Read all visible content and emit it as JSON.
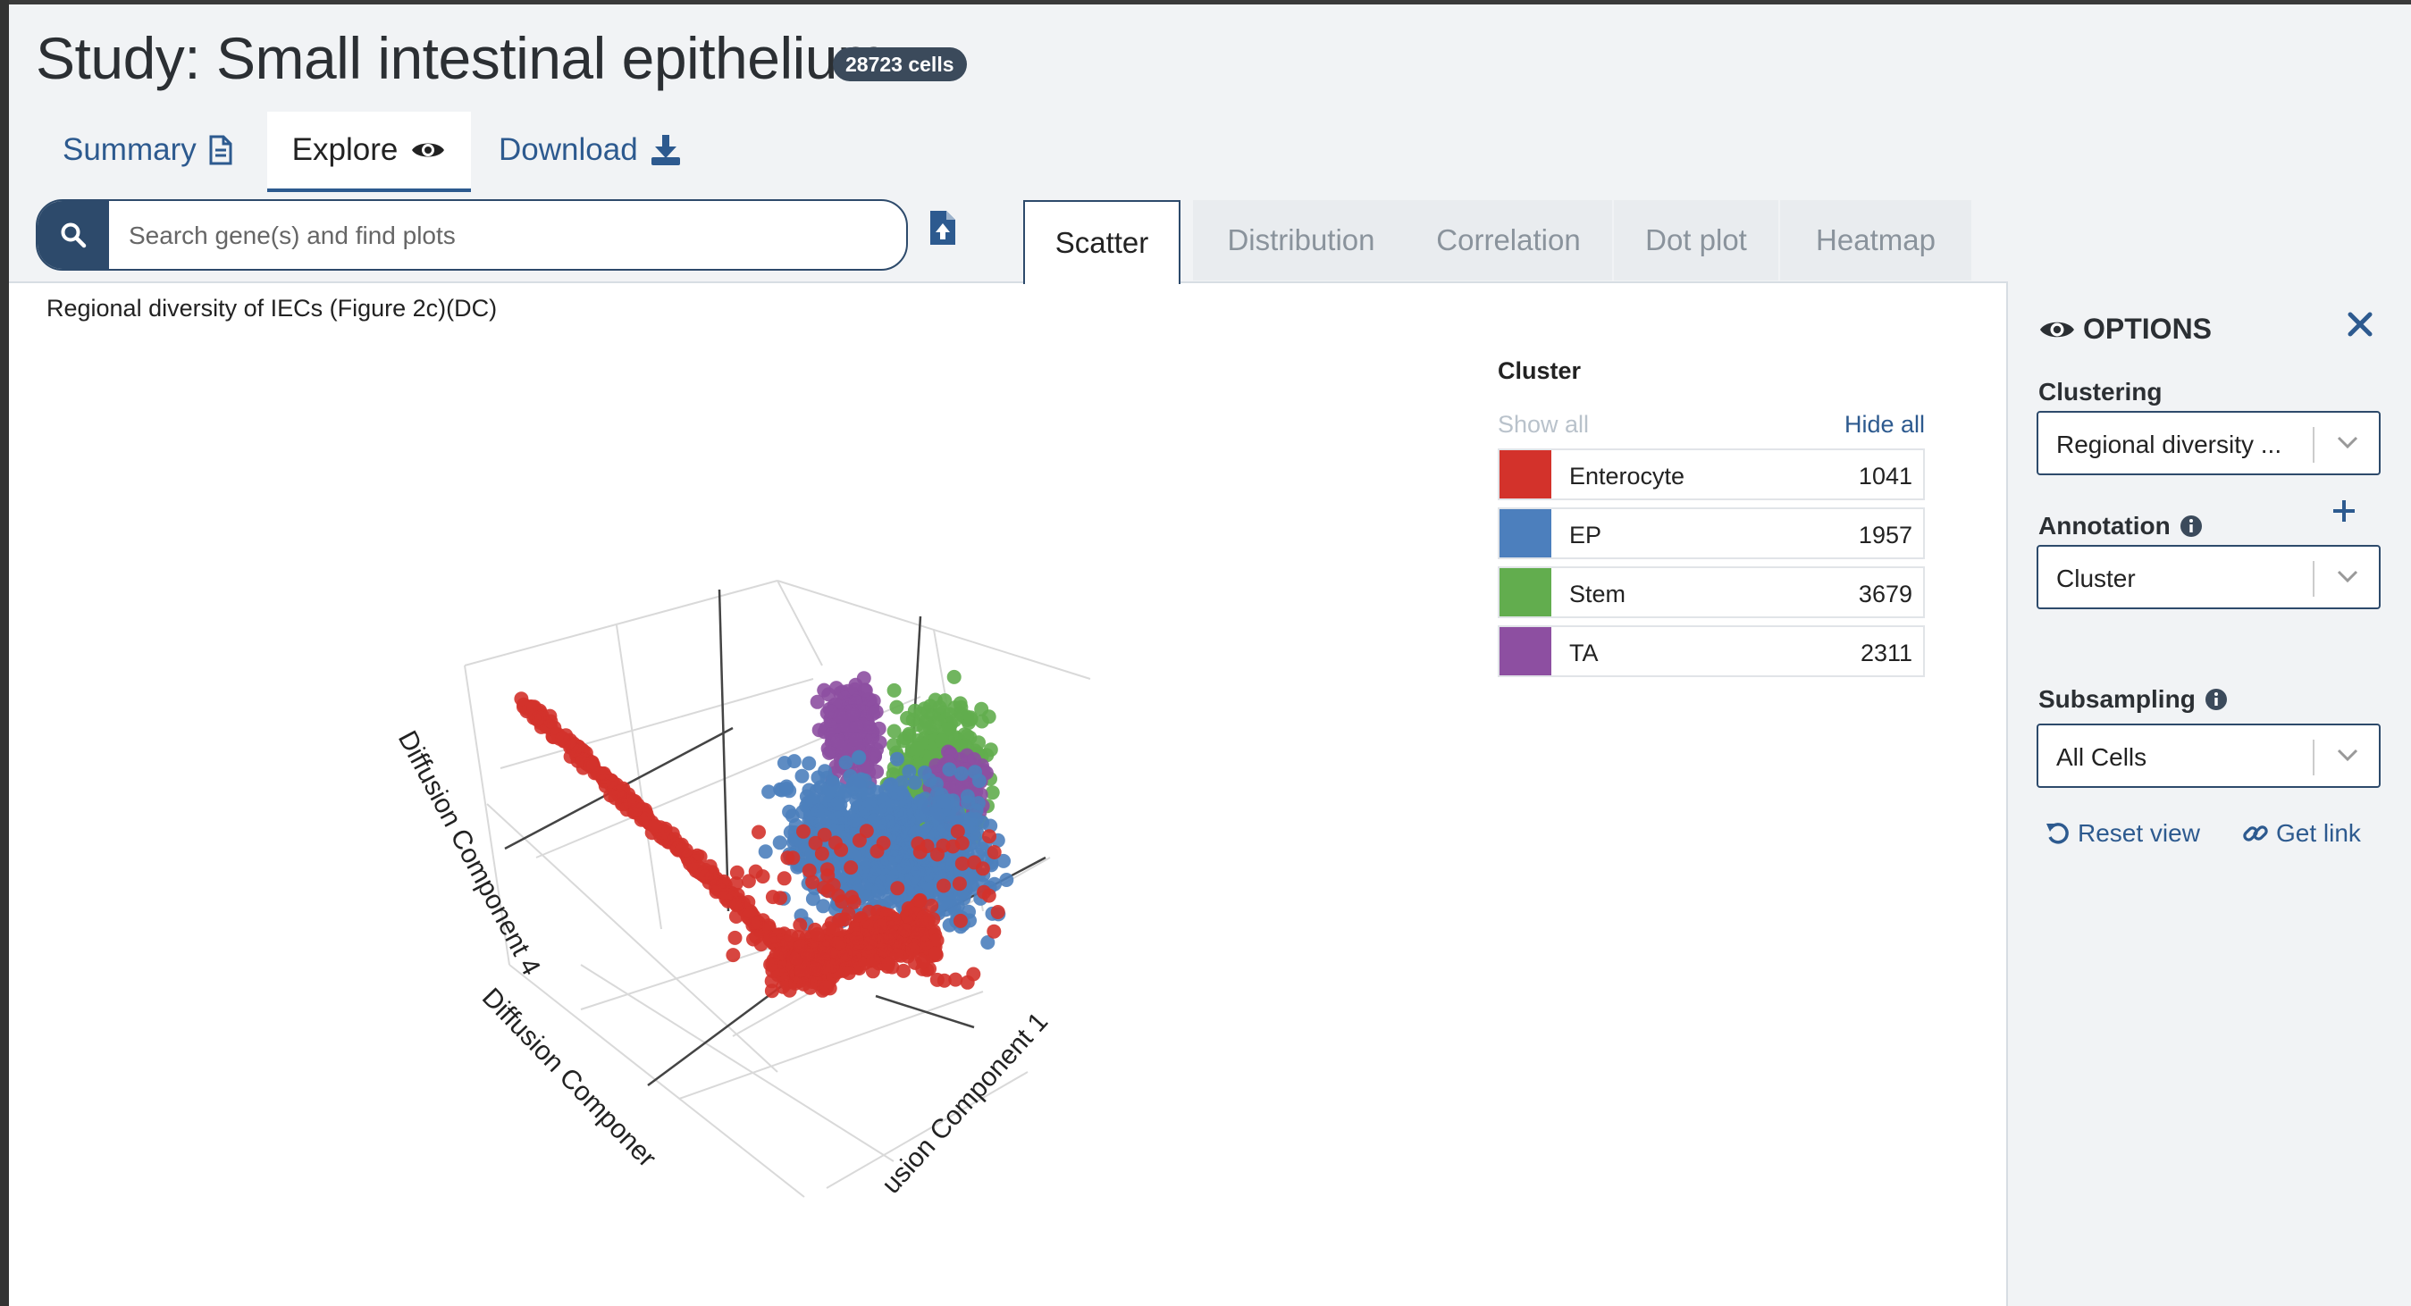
{
  "study": {
    "title": "Study: Small intestinal epithelium",
    "cell_badge": "28723 cells"
  },
  "nav": {
    "summary": "Summary",
    "explore": "Explore",
    "download": "Download"
  },
  "search": {
    "placeholder": "Search gene(s) and find plots",
    "value": ""
  },
  "plot_tabs": [
    "Scatter",
    "Distribution",
    "Correlation",
    "Dot plot",
    "Heatmap"
  ],
  "active_plot_tab": "Scatter",
  "plot": {
    "title": "Regional diversity of IECs (Figure 2c)(DC)",
    "axis_labels": [
      "Diffusion Component 4",
      "Diffusion Componer",
      "usion Component 1"
    ]
  },
  "legend": {
    "title": "Cluster",
    "show_all": "Show all",
    "hide_all": "Hide all",
    "items": [
      {
        "label": "Enterocyte",
        "count": "1041",
        "color": "#d3322b"
      },
      {
        "label": "EP",
        "count": "1957",
        "color": "#4c7fbd"
      },
      {
        "label": "Stem",
        "count": "3679",
        "color": "#62ad4e"
      },
      {
        "label": "TA",
        "count": "2311",
        "color": "#8d4fa1"
      }
    ]
  },
  "options": {
    "title": "OPTIONS",
    "clustering_label": "Clustering",
    "clustering_value": "Regional diversity ...",
    "annotation_label": "Annotation",
    "annotation_value": "Cluster",
    "subsampling_label": "Subsampling",
    "subsampling_value": "All Cells",
    "reset_view": "Reset view",
    "get_link": "Get link"
  },
  "icons": {
    "summary": "document-icon",
    "explore": "eye-icon",
    "download": "download-icon",
    "search": "search-icon",
    "upload": "file-upload-icon",
    "close": "close-icon",
    "info": "info-icon",
    "add": "plus-icon",
    "reset": "undo-icon",
    "link": "link-icon"
  },
  "colors": {
    "accent": "#2d5a8f",
    "dark": "#2d4a6b"
  }
}
